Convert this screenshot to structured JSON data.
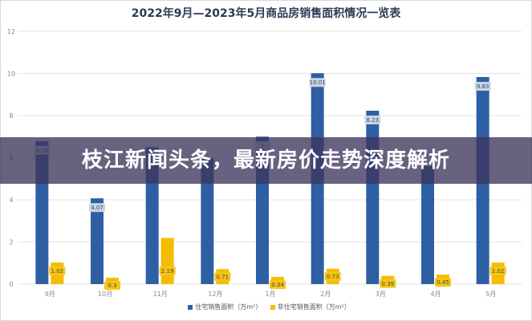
{
  "chart_data": {
    "type": "bar",
    "title": "2022年9月—2023年5月商品房销售面积情况一览表",
    "categories": [
      "9月",
      "10月",
      "11月",
      "12月",
      "1月",
      "2月",
      "3月",
      "4月",
      "5月"
    ],
    "series": [
      {
        "name": "住宅销售面积（万m²）",
        "color": "#2f5fa3",
        "values": [
          6.79,
          4.07,
          6.5,
          5.98,
          7,
          10.01,
          8.23,
          5.6,
          9.83
        ],
        "labels": [
          "6.79",
          "4.07",
          "",
          "",
          "7",
          "10.01",
          "8.23",
          "",
          "9.83"
        ]
      },
      {
        "name": "非住宅销售面积（万m²）",
        "color": "#f5bc00",
        "values": [
          1.02,
          0.3,
          2.19,
          0.71,
          0.34,
          0.73,
          0.39,
          0.45,
          1.02
        ],
        "labels": [
          "1.02",
          "0.3",
          "2.19",
          "0.71",
          "0.34",
          "0.73",
          "0.39",
          "0.45",
          "1.02"
        ]
      }
    ],
    "yticks": [
      "0",
      "2",
      "4",
      "6",
      "8",
      "10",
      "12"
    ],
    "ylim": [
      0,
      12
    ],
    "grid": true,
    "legend": "bottom"
  },
  "banner": {
    "headline": "枝江新闻头条，最新房价走势深度解析"
  }
}
